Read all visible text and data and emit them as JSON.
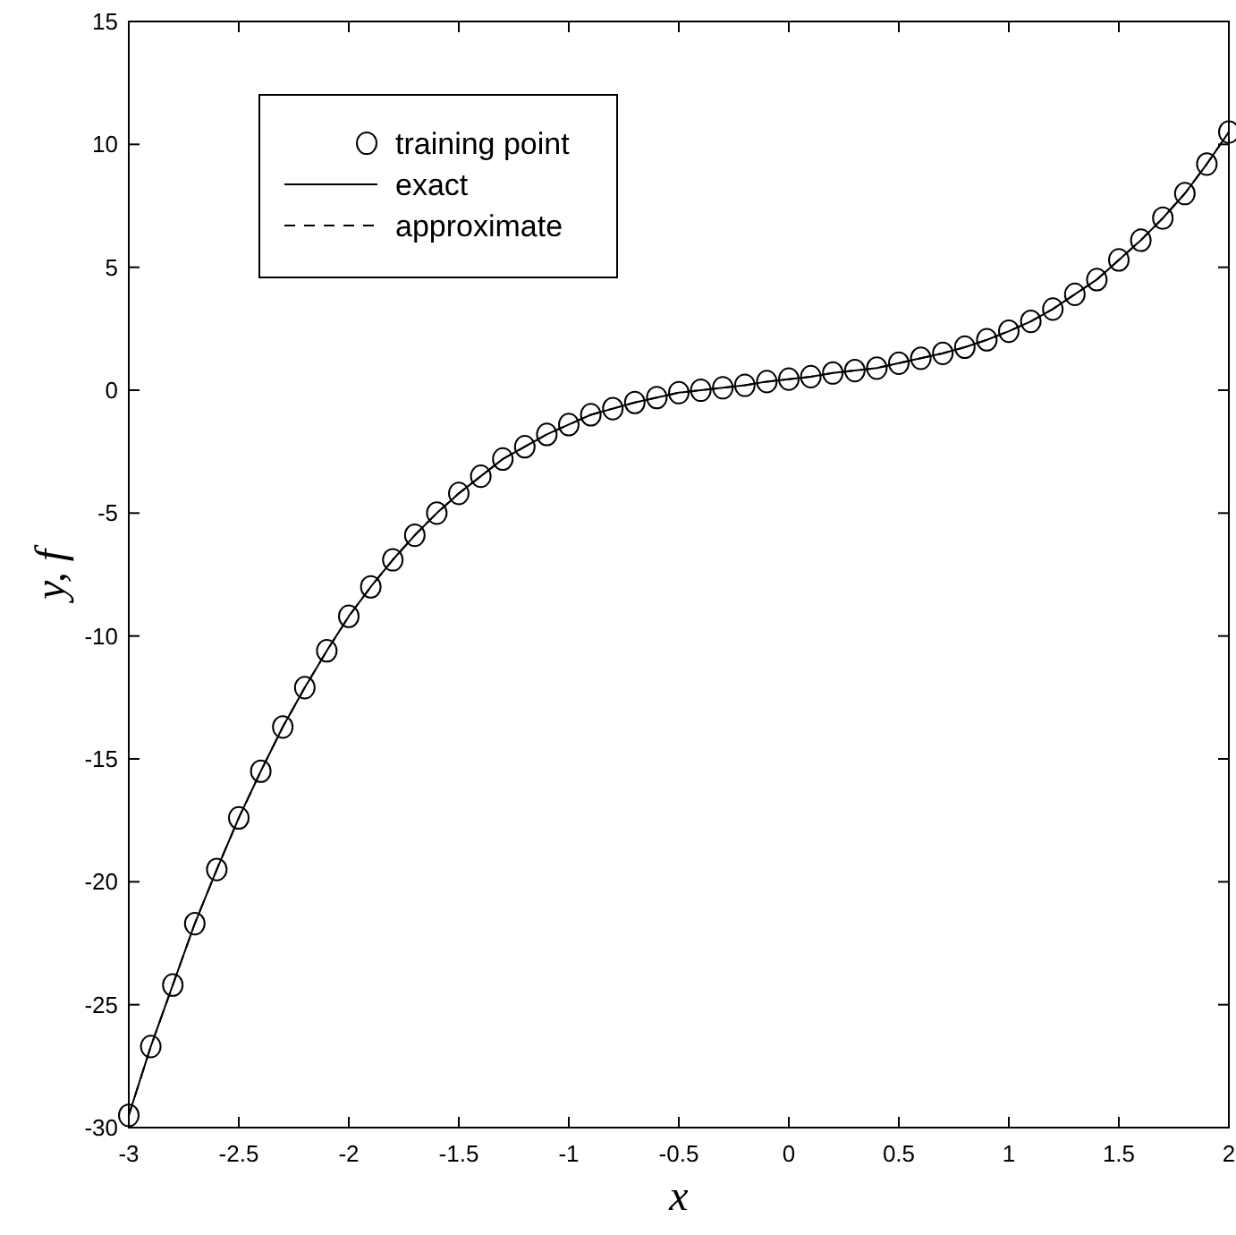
{
  "chart_data": {
    "type": "scatter",
    "xlabel": "x",
    "ylabel": "y, f",
    "x": [
      -3,
      -2.9,
      -2.8,
      -2.7,
      -2.6,
      -2.5,
      -2.4,
      -2.3,
      -2.2,
      -2.1,
      -2,
      -1.9,
      -1.8,
      -1.7,
      -1.6,
      -1.5,
      -1.4,
      -1.3,
      -1.2,
      -1.1,
      -1,
      -0.9,
      -0.8,
      -0.7,
      -0.6,
      -0.5,
      -0.4,
      -0.3,
      -0.2,
      -0.1,
      0,
      0.1,
      0.2,
      0.3,
      0.4,
      0.5,
      0.6,
      0.7,
      0.8,
      0.9,
      1,
      1.1,
      1.2,
      1.3,
      1.4,
      1.5,
      1.6,
      1.7,
      1.8,
      1.9,
      2
    ],
    "series": [
      {
        "name": "training point",
        "color": "#000000",
        "marker": "circle",
        "values": [
          -29.5,
          -26.7,
          -24.2,
          -21.7,
          -19.5,
          -17.4,
          -15.5,
          -13.7,
          -12.1,
          -10.6,
          -9.2,
          -8.0,
          -6.9,
          -5.9,
          -5.0,
          -4.2,
          -3.5,
          -2.8,
          -2.3,
          -1.8,
          -1.4,
          -1.0,
          -0.75,
          -0.5,
          -0.3,
          -0.1,
          0.0,
          0.1,
          0.2,
          0.35,
          0.45,
          0.55,
          0.7,
          0.8,
          0.9,
          1.1,
          1.3,
          1.5,
          1.75,
          2.05,
          2.4,
          2.8,
          3.3,
          3.9,
          4.5,
          5.3,
          6.1,
          7.0,
          8.0,
          9.2,
          10.5
        ]
      },
      {
        "name": "exact",
        "color": "#000000",
        "type": "line",
        "line_style": "solid",
        "marker": "none",
        "values": [
          -29.5,
          -26.7,
          -24.2,
          -21.7,
          -19.5,
          -17.4,
          -15.5,
          -13.7,
          -12.1,
          -10.6,
          -9.2,
          -8.0,
          -6.9,
          -5.9,
          -5.0,
          -4.2,
          -3.5,
          -2.8,
          -2.3,
          -1.8,
          -1.4,
          -1.0,
          -0.75,
          -0.5,
          -0.3,
          -0.1,
          0.0,
          0.1,
          0.2,
          0.35,
          0.45,
          0.55,
          0.7,
          0.8,
          0.9,
          1.1,
          1.3,
          1.5,
          1.75,
          2.05,
          2.4,
          2.8,
          3.3,
          3.9,
          4.5,
          5.3,
          6.1,
          7.0,
          8.0,
          9.2,
          10.5
        ]
      },
      {
        "name": "approximate",
        "color": "#000000",
        "type": "line",
        "line_style": "dashed",
        "marker": "none",
        "values": [
          -29.5,
          -26.7,
          -24.2,
          -21.7,
          -19.5,
          -17.4,
          -15.5,
          -13.7,
          -12.1,
          -10.6,
          -9.2,
          -8.0,
          -6.9,
          -5.9,
          -5.0,
          -4.2,
          -3.5,
          -2.8,
          -2.3,
          -1.8,
          -1.4,
          -1.0,
          -0.75,
          -0.5,
          -0.3,
          -0.1,
          0.0,
          0.1,
          0.2,
          0.35,
          0.45,
          0.55,
          0.7,
          0.8,
          0.9,
          1.1,
          1.3,
          1.5,
          1.75,
          2.05,
          2.4,
          2.8,
          3.3,
          3.9,
          4.5,
          5.3,
          6.1,
          7.0,
          8.0,
          9.2,
          10.5
        ]
      }
    ],
    "xlim": [
      -3,
      2
    ],
    "ylim": [
      -30,
      15
    ],
    "xticks": [
      -3,
      -2.5,
      -2,
      -1.5,
      -1,
      -0.5,
      0,
      0.5,
      1,
      1.5,
      2
    ],
    "yticks": [
      -30,
      -25,
      -20,
      -15,
      -10,
      -5,
      0,
      5,
      10,
      15
    ],
    "grid": false,
    "legend": "top left"
  }
}
